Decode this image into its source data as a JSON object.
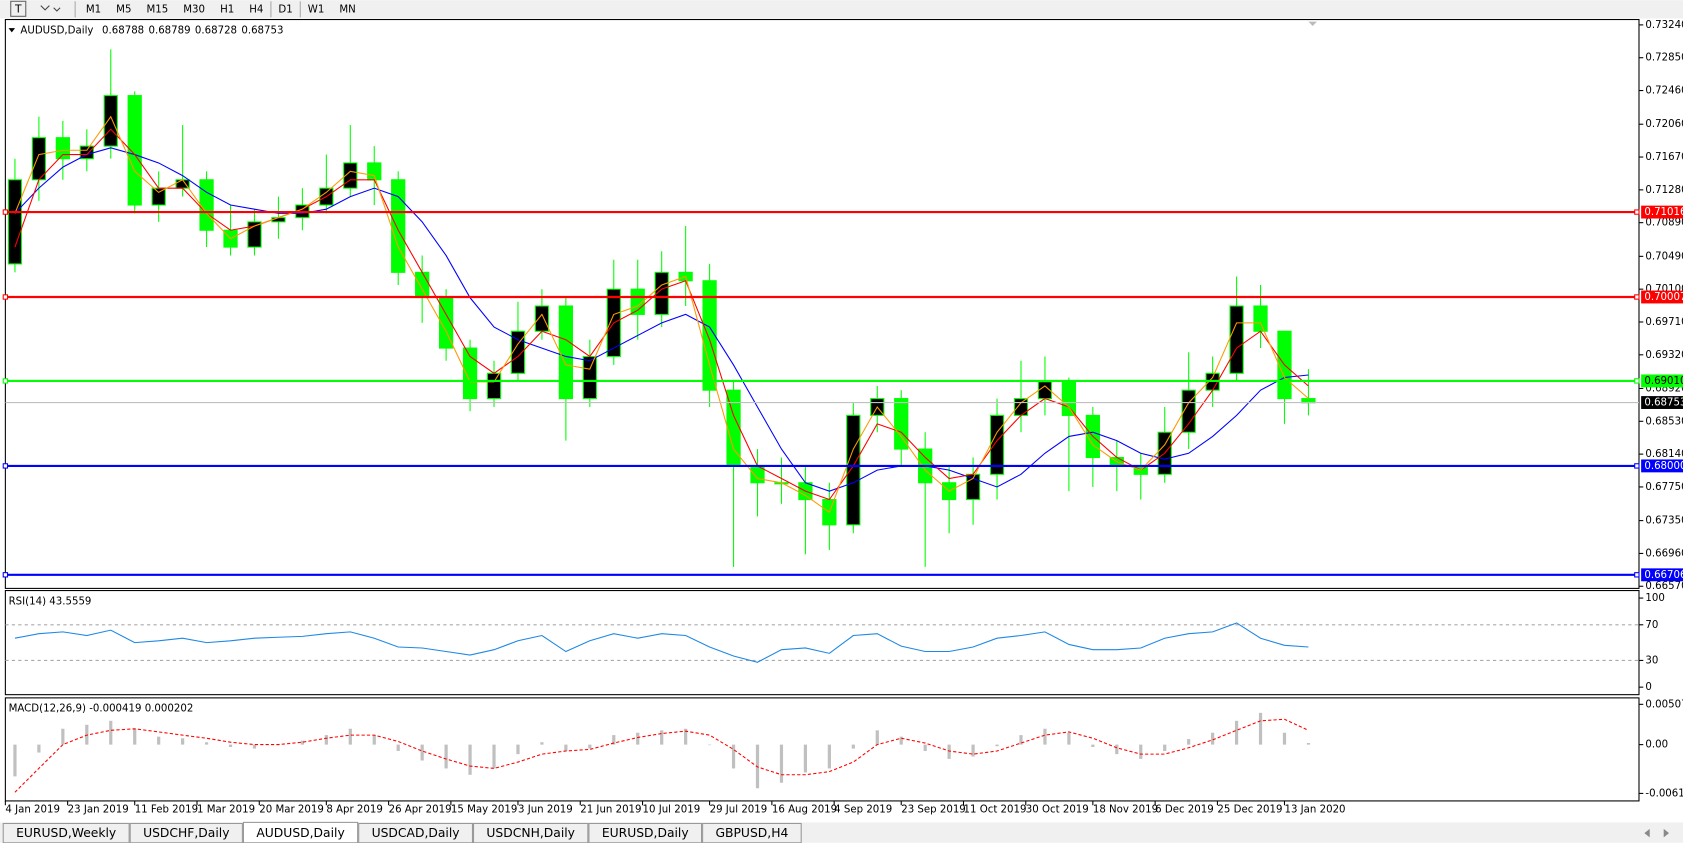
{
  "toolbar": {
    "timeframes": [
      "M1",
      "M5",
      "M15",
      "M30",
      "H1",
      "H4",
      "D1",
      "W1",
      "MN"
    ]
  },
  "tabs": [
    {
      "label": "EURUSD,Weekly",
      "active": false
    },
    {
      "label": "USDCHF,Daily",
      "active": false
    },
    {
      "label": "AUDUSD,Daily",
      "active": true
    },
    {
      "label": "USDCAD,Daily",
      "active": false
    },
    {
      "label": "USDCNH,Daily",
      "active": false
    },
    {
      "label": "EURUSD,Daily",
      "active": false
    },
    {
      "label": "GBPUSD,H4",
      "active": false
    }
  ],
  "chart_data": [
    {
      "type": "candlestick",
      "title": "AUDUSD,Daily",
      "quote": [
        0.68788,
        0.68789,
        0.68728,
        0.68753
      ],
      "color": "#00ff00",
      "x": [
        2,
        7,
        12,
        17,
        22,
        27,
        32,
        37,
        42,
        47,
        52,
        57,
        62,
        67,
        72,
        77,
        82,
        87,
        92,
        97,
        102,
        107,
        112,
        117,
        122,
        127,
        132,
        137,
        142,
        147,
        152,
        157,
        162,
        167,
        172,
        177,
        182,
        187,
        192,
        197,
        202,
        207,
        212,
        217,
        222,
        227,
        232,
        237,
        242,
        247,
        252,
        257,
        262,
        267,
        272
      ],
      "open": [
        0.704,
        0.714,
        0.719,
        0.7165,
        0.718,
        0.724,
        0.711,
        0.713,
        0.714,
        0.708,
        0.706,
        0.709,
        0.7095,
        0.711,
        0.713,
        0.716,
        0.714,
        0.703,
        0.7,
        0.694,
        0.688,
        0.691,
        0.696,
        0.699,
        0.688,
        0.693,
        0.701,
        0.698,
        0.703,
        0.702,
        0.689,
        0.68,
        0.678,
        0.678,
        0.676,
        0.673,
        0.686,
        0.688,
        0.682,
        0.678,
        0.676,
        0.679,
        0.686,
        0.688,
        0.69,
        0.686,
        0.681,
        0.68,
        0.679,
        0.684,
        0.689,
        0.691,
        0.699,
        0.696,
        0.688
      ],
      "high": [
        0.7165,
        0.7215,
        0.721,
        0.72,
        0.7295,
        0.7245,
        0.715,
        0.7205,
        0.715,
        0.711,
        0.7105,
        0.712,
        0.713,
        0.717,
        0.7205,
        0.718,
        0.715,
        0.705,
        0.701,
        0.695,
        0.6925,
        0.6995,
        0.701,
        0.7,
        0.695,
        0.7045,
        0.7045,
        0.7055,
        0.7085,
        0.704,
        0.69,
        0.682,
        0.681,
        0.68,
        0.678,
        0.6875,
        0.6895,
        0.689,
        0.684,
        0.68,
        0.681,
        0.688,
        0.6925,
        0.693,
        0.6905,
        0.687,
        0.683,
        0.6815,
        0.687,
        0.6935,
        0.693,
        0.7025,
        0.7015,
        0.696,
        0.6915
      ],
      "low": [
        0.703,
        0.7115,
        0.714,
        0.715,
        0.7165,
        0.71,
        0.709,
        0.712,
        0.706,
        0.705,
        0.705,
        0.707,
        0.708,
        0.71,
        0.712,
        0.711,
        0.7015,
        0.697,
        0.6925,
        0.6865,
        0.687,
        0.69,
        0.695,
        0.683,
        0.687,
        0.692,
        0.695,
        0.6965,
        0.699,
        0.687,
        0.668,
        0.674,
        0.6755,
        0.6695,
        0.67,
        0.672,
        0.684,
        0.68,
        0.668,
        0.672,
        0.673,
        0.676,
        0.684,
        0.686,
        0.677,
        0.6775,
        0.677,
        0.676,
        0.678,
        0.682,
        0.687,
        0.69,
        0.694,
        0.685,
        0.686
      ],
      "close": [
        0.714,
        0.719,
        0.7165,
        0.718,
        0.724,
        0.711,
        0.713,
        0.714,
        0.708,
        0.706,
        0.709,
        0.7095,
        0.711,
        0.713,
        0.716,
        0.714,
        0.703,
        0.7,
        0.694,
        0.688,
        0.691,
        0.696,
        0.699,
        0.688,
        0.693,
        0.701,
        0.698,
        0.703,
        0.702,
        0.689,
        0.68,
        0.678,
        0.678,
        0.676,
        0.673,
        0.686,
        0.688,
        0.682,
        0.678,
        0.676,
        0.679,
        0.686,
        0.688,
        0.69,
        0.686,
        0.681,
        0.68,
        0.679,
        0.684,
        0.689,
        0.691,
        0.699,
        0.696,
        0.688,
        0.6875
      ],
      "lines": [
        {
          "color": "#0000ff",
          "values": [
            0.71,
            0.713,
            0.7155,
            0.717,
            0.7178,
            0.717,
            0.716,
            0.7145,
            0.7125,
            0.711,
            0.7105,
            0.71,
            0.71,
            0.7105,
            0.712,
            0.713,
            0.712,
            0.709,
            0.705,
            0.7,
            0.6965,
            0.695,
            0.694,
            0.693,
            0.6925,
            0.694,
            0.6955,
            0.697,
            0.698,
            0.6965,
            0.692,
            0.687,
            0.682,
            0.678,
            0.677,
            0.678,
            0.6795,
            0.68,
            0.68,
            0.6795,
            0.6785,
            0.6775,
            0.679,
            0.6815,
            0.6835,
            0.684,
            0.683,
            0.6815,
            0.6808,
            0.6815,
            0.6835,
            0.686,
            0.689,
            0.6905,
            0.6908
          ]
        },
        {
          "color": "#ff0000",
          "values": [
            0.706,
            0.714,
            0.717,
            0.717,
            0.72,
            0.717,
            0.713,
            0.713,
            0.71,
            0.708,
            0.7085,
            0.7095,
            0.7105,
            0.712,
            0.714,
            0.714,
            0.708,
            0.703,
            0.698,
            0.693,
            0.691,
            0.693,
            0.696,
            0.695,
            0.693,
            0.697,
            0.6985,
            0.701,
            0.702,
            0.695,
            0.686,
            0.68,
            0.6785,
            0.677,
            0.676,
            0.68,
            0.685,
            0.684,
            0.681,
            0.6785,
            0.679,
            0.683,
            0.686,
            0.688,
            0.687,
            0.6835,
            0.681,
            0.6795,
            0.6815,
            0.685,
            0.689,
            0.694,
            0.696,
            0.692,
            0.6895
          ]
        },
        {
          "color": "#ff9900",
          "values": [
            0.71,
            0.717,
            0.7175,
            0.7175,
            0.7215,
            0.715,
            0.7125,
            0.714,
            0.71,
            0.707,
            0.7085,
            0.7095,
            0.7105,
            0.7125,
            0.715,
            0.7145,
            0.706,
            0.701,
            0.696,
            0.69,
            0.69,
            0.6945,
            0.698,
            0.692,
            0.6915,
            0.698,
            0.699,
            0.7015,
            0.7025,
            0.692,
            0.682,
            0.6785,
            0.678,
            0.6765,
            0.6745,
            0.682,
            0.687,
            0.6835,
            0.6795,
            0.677,
            0.6785,
            0.684,
            0.6875,
            0.6895,
            0.687,
            0.6825,
            0.6805,
            0.6795,
            0.6825,
            0.6875,
            0.6905,
            0.697,
            0.697,
            0.6905,
            0.688
          ]
        }
      ],
      "hlines": [
        {
          "value": 0.71016,
          "color": "#ff0000"
        },
        {
          "value": 0.70007,
          "color": "#ff0000"
        },
        {
          "value": 0.6901,
          "label": "0.69010",
          "color": "#00ff00"
        },
        {
          "value": 0.68,
          "label": "0.68000",
          "color": "#0000ff"
        },
        {
          "value": 0.66706,
          "color": "#0000ff"
        }
      ],
      "last": {
        "value": 0.68753,
        "color": "#c0c0c0"
      },
      "ylim": [
        0.6657,
        0.7324
      ],
      "yticks": [
        {
          "value": 0.7324,
          "label": "0.73240"
        },
        {
          "value": 0.7285,
          "label": "0.72850"
        },
        {
          "value": 0.7246,
          "label": "0.72460"
        },
        {
          "value": 0.7206,
          "label": "0.72060"
        },
        {
          "value": 0.7167,
          "label": "0.71670"
        },
        {
          "value": 0.7128,
          "label": "0.71280"
        },
        {
          "value": 0.7089,
          "label": "0.70890"
        },
        {
          "value": 0.7049,
          "label": "0.70490"
        },
        {
          "value": 0.701,
          "label": "0.70100"
        },
        {
          "value": 0.6971,
          "label": "0.69710"
        },
        {
          "value": 0.6932,
          "label": "0.69320"
        },
        {
          "value": 0.6892,
          "label": "0.68920"
        },
        {
          "value": 0.6853,
          "label": "0.68530"
        },
        {
          "value": 0.6814,
          "label": "0.68140"
        },
        {
          "value": 0.6775,
          "label": "0.67750"
        },
        {
          "value": 0.6735,
          "label": "0.67350"
        },
        {
          "value": 0.6696,
          "label": "0.66960"
        },
        {
          "value": 0.6657,
          "label": "0.66570"
        }
      ],
      "xlim": [
        0,
        341
      ],
      "xticks": [
        {
          "value": 0,
          "label": "4 Jan 2019"
        },
        {
          "value": 13,
          "label": "23 Jan 2019"
        },
        {
          "value": 27,
          "label": "11 Feb 2019"
        },
        {
          "value": 40,
          "label": "1 Mar 2019"
        },
        {
          "value": 53,
          "label": "20 Mar 2019"
        },
        {
          "value": 67,
          "label": "8 Apr 2019"
        },
        {
          "value": 80,
          "label": "26 Apr 2019"
        },
        {
          "value": 93,
          "label": "15 May 2019"
        },
        {
          "value": 107,
          "label": "3 Jun 2019"
        },
        {
          "value": 120,
          "label": "21 Jun 2019"
        },
        {
          "value": 133,
          "label": "10 Jul 2019"
        },
        {
          "value": 147,
          "label": "29 Jul 2019"
        },
        {
          "value": 160,
          "label": "16 Aug 2019"
        },
        {
          "value": 173,
          "label": "4 Sep 2019"
        },
        {
          "value": 187,
          "label": "23 Sep 2019"
        },
        {
          "value": 200,
          "label": "11 Oct 2019"
        },
        {
          "value": 213,
          "label": "30 Oct 2019"
        },
        {
          "value": 227,
          "label": "18 Nov 2019"
        },
        {
          "value": 240,
          "label": "6 Dec 2019"
        },
        {
          "value": 253,
          "label": "25 Dec 2019"
        },
        {
          "value": 267,
          "label": "13 Jan 2020"
        }
      ]
    },
    {
      "type": "line",
      "title": "RSI(14) 43.5559",
      "x": [
        2,
        7,
        12,
        17,
        22,
        27,
        32,
        37,
        42,
        47,
        52,
        57,
        62,
        67,
        72,
        77,
        82,
        87,
        92,
        97,
        102,
        107,
        112,
        117,
        122,
        127,
        132,
        137,
        142,
        147,
        152,
        157,
        162,
        167,
        172,
        177,
        182,
        187,
        192,
        197,
        202,
        207,
        212,
        217,
        222,
        227,
        232,
        237,
        242,
        247,
        252,
        257,
        262,
        267,
        272
      ],
      "series": [
        {
          "color": "#1e88e5",
          "values": [
            55,
            60,
            62,
            58,
            64,
            50,
            52,
            55,
            50,
            52,
            55,
            56,
            57,
            60,
            62,
            55,
            45,
            44,
            40,
            36,
            42,
            52,
            58,
            40,
            52,
            60,
            55,
            60,
            58,
            45,
            35,
            28,
            42,
            44,
            38,
            58,
            60,
            46,
            40,
            40,
            45,
            55,
            58,
            62,
            48,
            42,
            42,
            44,
            55,
            60,
            62,
            72,
            55,
            47,
            45
          ]
        }
      ],
      "levels": [
        30,
        70
      ],
      "xlim": [
        0,
        341
      ],
      "ylim": [
        0,
        100
      ],
      "yticks": [
        0,
        30,
        70,
        100
      ]
    },
    {
      "type": "macd",
      "title": "MACD(12,26,9) -0.000419 0.000202",
      "x": [
        2,
        7,
        12,
        17,
        22,
        27,
        32,
        37,
        42,
        47,
        52,
        57,
        62,
        67,
        72,
        77,
        82,
        87,
        92,
        97,
        102,
        107,
        112,
        117,
        122,
        127,
        132,
        137,
        142,
        147,
        152,
        157,
        162,
        167,
        172,
        177,
        182,
        187,
        192,
        197,
        202,
        207,
        212,
        217,
        222,
        227,
        232,
        237,
        242,
        247,
        252,
        257,
        262,
        267,
        272
      ],
      "histogram": [
        -0.004,
        -0.001,
        0.002,
        0.0025,
        0.003,
        0.002,
        0.001,
        0.0008,
        0.0003,
        -0.0003,
        -0.0005,
        0.0,
        0.0005,
        0.0012,
        0.002,
        0.0012,
        -0.0008,
        -0.002,
        -0.003,
        -0.0038,
        -0.003,
        -0.0012,
        0.0003,
        -0.0008,
        -0.0005,
        0.0012,
        0.0015,
        0.0018,
        0.002,
        0.0,
        -0.003,
        -0.0055,
        -0.0048,
        -0.0035,
        -0.003,
        -0.0005,
        0.0018,
        0.001,
        -0.0008,
        -0.0018,
        -0.0015,
        -0.0002,
        0.0012,
        0.002,
        0.0015,
        -0.0003,
        -0.0012,
        -0.0018,
        -0.0008,
        0.0007,
        0.0015,
        0.003,
        0.004,
        0.0015,
        0.0002
      ],
      "histogram_color": "#c0c0c0",
      "signal": [
        -0.006,
        -0.003,
        0.0,
        0.0012,
        0.0018,
        0.002,
        0.0016,
        0.0012,
        0.0008,
        0.0003,
        0.0,
        0.0,
        0.0003,
        0.0008,
        0.0012,
        0.0012,
        0.0004,
        -0.0008,
        -0.0018,
        -0.0027,
        -0.003,
        -0.0022,
        -0.0012,
        -0.0008,
        -0.0006,
        0.0002,
        0.0009,
        0.0014,
        0.0017,
        0.0012,
        -0.0006,
        -0.0028,
        -0.0038,
        -0.0038,
        -0.0034,
        -0.0022,
        0.0,
        0.0008,
        0.0002,
        -0.0008,
        -0.0012,
        -0.0008,
        0.0002,
        0.0012,
        0.0016,
        0.0008,
        -0.0004,
        -0.0012,
        -0.0012,
        -0.0004,
        0.0006,
        0.0018,
        0.003,
        0.0032,
        0.0018
      ],
      "signal_color": "#ff0000",
      "xlim": [
        0,
        341
      ],
      "ylim": [
        -0.006146,
        0.005076
      ],
      "yticks": [
        0.005076,
        {
          "value": 0,
          "label": "0.00"
        },
        -0.006146
      ]
    }
  ]
}
